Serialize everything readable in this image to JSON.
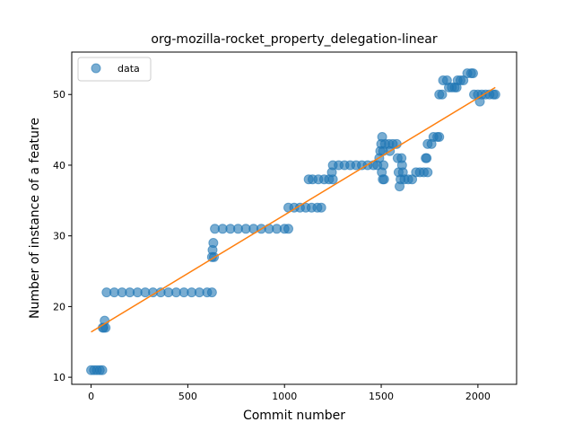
{
  "chart_data": {
    "type": "scatter",
    "title": "org-mozilla-rocket_property_delegation-linear",
    "xlabel": "Commit number",
    "ylabel": "Number of instance of a feature",
    "xlim": [
      -100,
      2200
    ],
    "ylim": [
      9,
      56
    ],
    "xticks": [
      0,
      500,
      1000,
      1500,
      2000
    ],
    "yticks": [
      10,
      20,
      30,
      40,
      50
    ],
    "grid": false,
    "legend": {
      "placement": "top-left",
      "entries": [
        "data"
      ]
    },
    "colors": {
      "data": "#1f77b4",
      "fit": "#ff7f0e"
    },
    "series": [
      {
        "name": "data",
        "style": "markers",
        "points": [
          [
            0,
            11
          ],
          [
            15,
            11
          ],
          [
            30,
            11
          ],
          [
            45,
            11
          ],
          [
            58,
            11
          ],
          [
            60,
            17
          ],
          [
            65,
            17
          ],
          [
            70,
            18
          ],
          [
            75,
            17
          ],
          [
            80,
            22
          ],
          [
            120,
            22
          ],
          [
            160,
            22
          ],
          [
            200,
            22
          ],
          [
            240,
            22
          ],
          [
            280,
            22
          ],
          [
            320,
            22
          ],
          [
            360,
            22
          ],
          [
            400,
            22
          ],
          [
            440,
            22
          ],
          [
            480,
            22
          ],
          [
            520,
            22
          ],
          [
            560,
            22
          ],
          [
            600,
            22
          ],
          [
            625,
            22
          ],
          [
            625,
            27
          ],
          [
            628,
            28
          ],
          [
            632,
            29
          ],
          [
            635,
            27
          ],
          [
            640,
            31
          ],
          [
            680,
            31
          ],
          [
            720,
            31
          ],
          [
            760,
            31
          ],
          [
            800,
            31
          ],
          [
            840,
            31
          ],
          [
            880,
            31
          ],
          [
            920,
            31
          ],
          [
            960,
            31
          ],
          [
            1000,
            31
          ],
          [
            1020,
            31
          ],
          [
            1020,
            34
          ],
          [
            1050,
            34
          ],
          [
            1080,
            34
          ],
          [
            1110,
            34
          ],
          [
            1140,
            34
          ],
          [
            1170,
            34
          ],
          [
            1190,
            34
          ],
          [
            1125,
            38
          ],
          [
            1145,
            38
          ],
          [
            1175,
            38
          ],
          [
            1205,
            38
          ],
          [
            1230,
            38
          ],
          [
            1250,
            38
          ],
          [
            1245,
            39
          ],
          [
            1250,
            40
          ],
          [
            1280,
            40
          ],
          [
            1310,
            40
          ],
          [
            1340,
            40
          ],
          [
            1370,
            40
          ],
          [
            1400,
            40
          ],
          [
            1430,
            40
          ],
          [
            1460,
            40
          ],
          [
            1480,
            40
          ],
          [
            1490,
            41
          ],
          [
            1495,
            42
          ],
          [
            1500,
            43
          ],
          [
            1505,
            44
          ],
          [
            1510,
            42
          ],
          [
            1512,
            40
          ],
          [
            1503,
            39
          ],
          [
            1508,
            38
          ],
          [
            1515,
            38
          ],
          [
            1520,
            43
          ],
          [
            1540,
            43
          ],
          [
            1560,
            43
          ],
          [
            1580,
            43
          ],
          [
            1545,
            42
          ],
          [
            1585,
            41
          ],
          [
            1590,
            39
          ],
          [
            1595,
            37
          ],
          [
            1600,
            38
          ],
          [
            1605,
            41
          ],
          [
            1608,
            40
          ],
          [
            1612,
            39
          ],
          [
            1620,
            38
          ],
          [
            1640,
            38
          ],
          [
            1660,
            38
          ],
          [
            1680,
            39
          ],
          [
            1700,
            39
          ],
          [
            1720,
            39
          ],
          [
            1740,
            39
          ],
          [
            1730,
            41
          ],
          [
            1735,
            41
          ],
          [
            1740,
            43
          ],
          [
            1760,
            43
          ],
          [
            1770,
            44
          ],
          [
            1790,
            44
          ],
          [
            1800,
            44
          ],
          [
            1800,
            50
          ],
          [
            1815,
            50
          ],
          [
            1820,
            52
          ],
          [
            1840,
            52
          ],
          [
            1850,
            51
          ],
          [
            1865,
            51
          ],
          [
            1880,
            51
          ],
          [
            1890,
            51
          ],
          [
            1895,
            52
          ],
          [
            1910,
            52
          ],
          [
            1925,
            52
          ],
          [
            1945,
            53
          ],
          [
            1965,
            53
          ],
          [
            1975,
            53
          ],
          [
            1980,
            50
          ],
          [
            2000,
            50
          ],
          [
            2010,
            49
          ],
          [
            2020,
            50
          ],
          [
            2040,
            50
          ],
          [
            2060,
            50
          ],
          [
            2080,
            50
          ],
          [
            2090,
            50
          ]
        ]
      },
      {
        "name": "",
        "style": "line",
        "points": [
          [
            0,
            16.4
          ],
          [
            2090,
            51.0
          ]
        ]
      }
    ]
  }
}
